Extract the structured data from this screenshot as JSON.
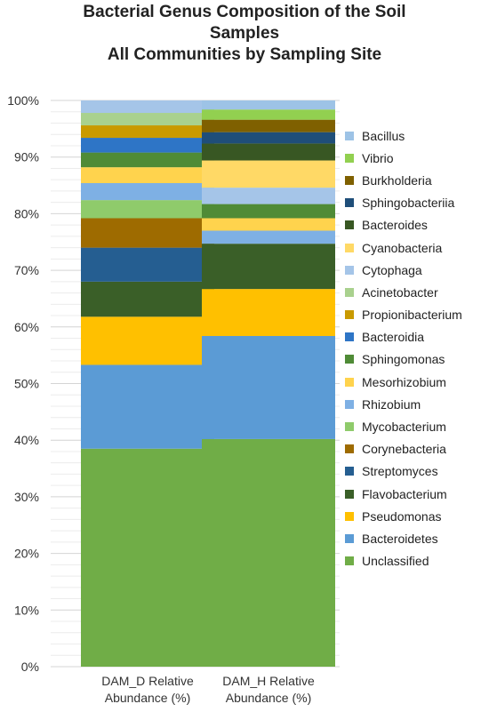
{
  "chart_data": {
    "type": "bar",
    "stacked": true,
    "title_lines": [
      "Bacterial Genus Composition of the Soil",
      "Samples",
      "All Communities by Sampling Site"
    ],
    "categories": [
      "DAM_D Relative Abundance (%)",
      "DAM_H Relative Abundance (%)"
    ],
    "xlabel": "",
    "ylabel": "",
    "ylim": [
      0,
      100
    ],
    "y_ticks": [
      "0%",
      "10%",
      "20%",
      "30%",
      "40%",
      "50%",
      "60%",
      "70%",
      "80%",
      "90%",
      "100%"
    ],
    "grid": true,
    "legend_position": "right",
    "series": [
      {
        "name": "Unclassified",
        "color": "#70AD47",
        "values": [
          38.5,
          40.2
        ]
      },
      {
        "name": "Bacteroidetes",
        "color": "#5B9BD5",
        "values": [
          14.8,
          18.2
        ]
      },
      {
        "name": "Pseudomonas",
        "color": "#FFC000",
        "values": [
          8.5,
          8.3
        ]
      },
      {
        "name": "Flavobacterium",
        "color": "#3A5F28",
        "values": [
          6.2,
          8.0
        ]
      },
      {
        "name": "Streptomyces",
        "color": "#255E91",
        "values": [
          6.0,
          0.0
        ]
      },
      {
        "name": "Corynebacteria",
        "color": "#9E6B00",
        "values": [
          5.2,
          0.0
        ]
      },
      {
        "name": "Mycobacterium",
        "color": "#8FCB6B",
        "values": [
          3.2,
          0.0
        ]
      },
      {
        "name": "Rhizobium",
        "color": "#7EB0E4",
        "values": [
          3.0,
          2.3
        ]
      },
      {
        "name": "Mesorhizobium",
        "color": "#FFD34D",
        "values": [
          2.8,
          2.2
        ]
      },
      {
        "name": "Sphingomonas",
        "color": "#4F8B36",
        "values": [
          2.6,
          2.5
        ]
      },
      {
        "name": "Bacteroidia",
        "color": "#2E75C6",
        "values": [
          2.6,
          0.0
        ]
      },
      {
        "name": "Propionibacterium",
        "color": "#C99A00",
        "values": [
          2.2,
          0.0
        ]
      },
      {
        "name": "Acinetobacter",
        "color": "#A9D18E",
        "values": [
          2.2,
          0.0
        ]
      },
      {
        "name": "Cytophaga",
        "color": "#A5C5E8",
        "values": [
          2.2,
          2.9
        ]
      },
      {
        "name": "Cyanobacteria",
        "color": "#FFD966",
        "values": [
          0.0,
          4.8
        ]
      },
      {
        "name": "Bacteroides",
        "color": "#385723",
        "values": [
          0.0,
          3.0
        ]
      },
      {
        "name": "Sphingobacteriia",
        "color": "#1F4E79",
        "values": [
          0.0,
          2.0
        ]
      },
      {
        "name": "Burkholderia",
        "color": "#7F6000",
        "values": [
          0.0,
          2.2
        ]
      },
      {
        "name": "Vibrio",
        "color": "#92D050",
        "values": [
          0.0,
          1.8
        ]
      },
      {
        "name": "Bacillus",
        "color": "#9DC3E6",
        "values": [
          0.0,
          1.6
        ]
      }
    ]
  }
}
